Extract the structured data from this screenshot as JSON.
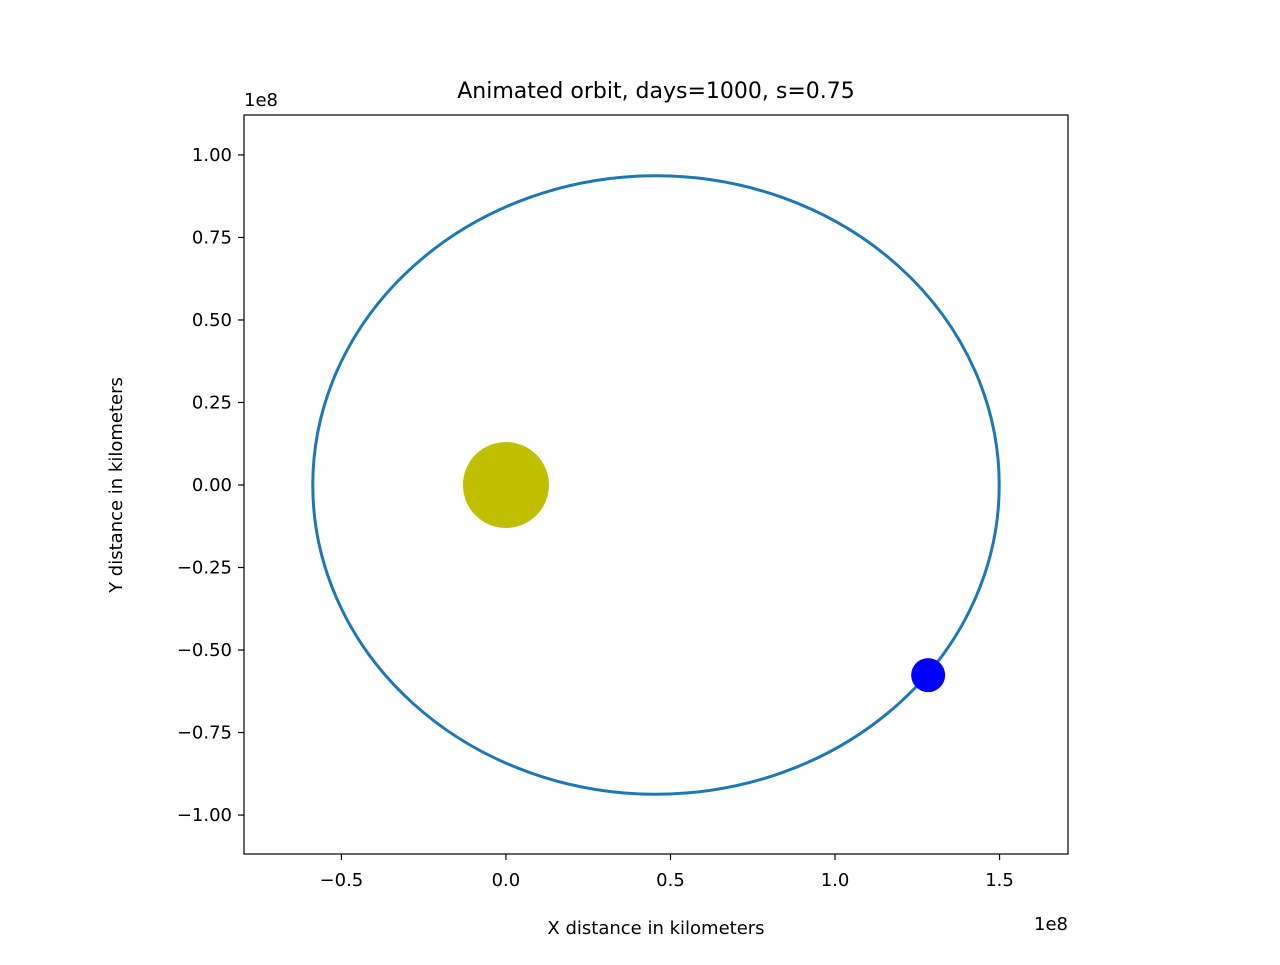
{
  "chart_data": {
    "type": "line",
    "title": "Animated orbit, days=1000, s=0.75",
    "xlabel": "X distance in kilometers",
    "ylabel": "Y distance in kilometers",
    "x_offset_text": "1e8",
    "y_offset_text": "1e8",
    "xlim": [
      -0.796,
      1.708
    ],
    "ylim": [
      -1.118,
      1.121
    ],
    "scale": 100000000.0,
    "x_ticks": [
      -0.5,
      0.0,
      0.5,
      1.0,
      1.5
    ],
    "x_tick_labels": [
      "−0.5",
      "0.0",
      "0.5",
      "1.0",
      "1.5"
    ],
    "y_ticks": [
      1.0,
      0.75,
      0.5,
      0.25,
      0.0,
      -0.25,
      -0.5,
      -0.75,
      -1.0
    ],
    "y_tick_labels": [
      "1.00",
      "0.75",
      "0.50",
      "0.25",
      "0.00",
      "−0.25",
      "−0.50",
      "−0.75",
      "−1.00"
    ],
    "grid": false,
    "orbit": {
      "shape": "ellipse",
      "center": [
        0.456,
        0.0
      ],
      "semi_major_axis": 1.043,
      "semi_minor_axis": 0.937,
      "color": "#1f77b4"
    },
    "sun": {
      "x": 0.0,
      "y": 0.0,
      "color": "#bfbf00"
    },
    "planet": {
      "x": 1.283,
      "y": -0.576,
      "color": "#0000ff"
    }
  }
}
